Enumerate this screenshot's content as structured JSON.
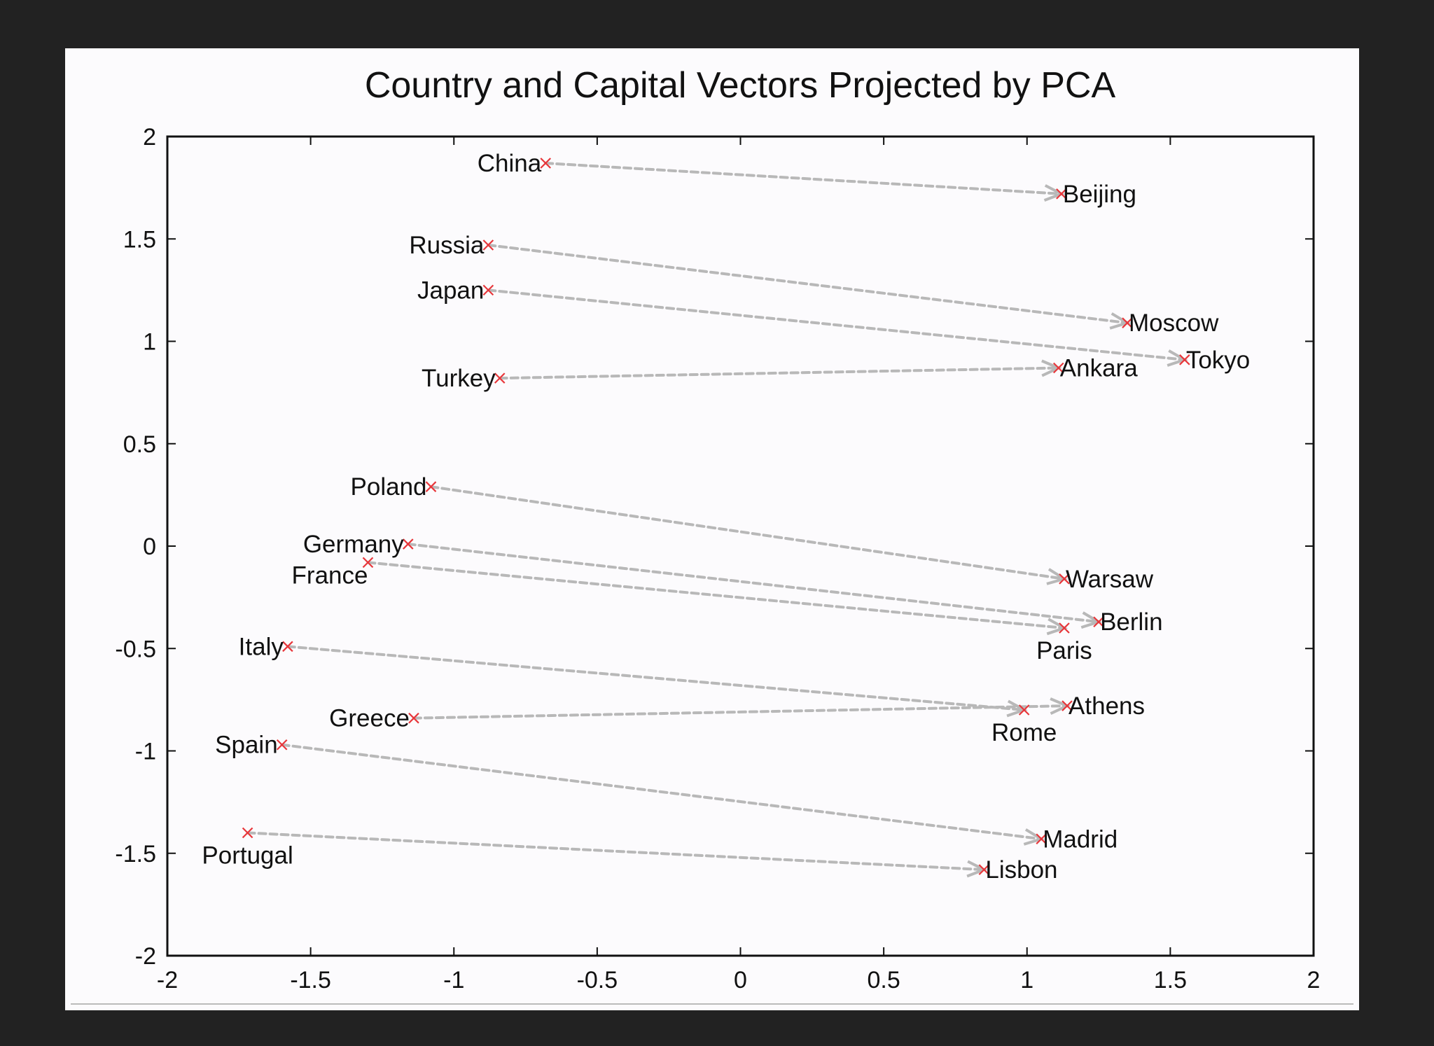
{
  "chart_data": {
    "type": "scatter",
    "title": "Country and Capital Vectors Projected by PCA",
    "xlabel": "",
    "ylabel": "",
    "xlim": [
      -2,
      2
    ],
    "ylim": [
      -2,
      2
    ],
    "xticks": [
      -2,
      -1.5,
      -1,
      -0.5,
      0,
      0.5,
      1,
      1.5,
      2
    ],
    "yticks": [
      -2,
      -1.5,
      -1,
      -0.5,
      0,
      0.5,
      1,
      1.5,
      2
    ],
    "xtick_labels": [
      "-2",
      "-1.5",
      "-1",
      "-0.5",
      "0",
      "0.5",
      "1",
      "1.5",
      "2"
    ],
    "ytick_labels": [
      "-2",
      "-1.5",
      "-1",
      "-0.5",
      "0",
      "0.5",
      "1",
      "1.5",
      "2"
    ],
    "grid": false,
    "marker": "x",
    "marker_color": "#e8363a",
    "arrow_color": "#b8b8b8",
    "points": [
      {
        "label": "China",
        "x": -0.68,
        "y": 1.87,
        "label_pos": "left"
      },
      {
        "label": "Beijing",
        "x": 1.12,
        "y": 1.72,
        "label_pos": "right"
      },
      {
        "label": "Russia",
        "x": -0.88,
        "y": 1.47,
        "label_pos": "left"
      },
      {
        "label": "Moscow",
        "x": 1.35,
        "y": 1.09,
        "label_pos": "right"
      },
      {
        "label": "Japan",
        "x": -0.88,
        "y": 1.25,
        "label_pos": "left"
      },
      {
        "label": "Tokyo",
        "x": 1.55,
        "y": 0.91,
        "label_pos": "right"
      },
      {
        "label": "Turkey",
        "x": -0.84,
        "y": 0.82,
        "label_pos": "left"
      },
      {
        "label": "Ankara",
        "x": 1.11,
        "y": 0.87,
        "label_pos": "right"
      },
      {
        "label": "Poland",
        "x": -1.08,
        "y": 0.29,
        "label_pos": "left"
      },
      {
        "label": "Warsaw",
        "x": 1.13,
        "y": -0.16,
        "label_pos": "right"
      },
      {
        "label": "Germany",
        "x": -1.16,
        "y": 0.01,
        "label_pos": "left"
      },
      {
        "label": "Berlin",
        "x": 1.25,
        "y": -0.37,
        "label_pos": "right"
      },
      {
        "label": "France",
        "x": -1.3,
        "y": -0.08,
        "label_pos": "below-left"
      },
      {
        "label": "Paris",
        "x": 1.13,
        "y": -0.4,
        "label_pos": "below"
      },
      {
        "label": "Italy",
        "x": -1.58,
        "y": -0.49,
        "label_pos": "left"
      },
      {
        "label": "Rome",
        "x": 0.99,
        "y": -0.8,
        "label_pos": "below"
      },
      {
        "label": "Greece",
        "x": -1.14,
        "y": -0.84,
        "label_pos": "left"
      },
      {
        "label": "Athens",
        "x": 1.14,
        "y": -0.78,
        "label_pos": "right"
      },
      {
        "label": "Spain",
        "x": -1.6,
        "y": -0.97,
        "label_pos": "left"
      },
      {
        "label": "Madrid",
        "x": 1.05,
        "y": -1.43,
        "label_pos": "right"
      },
      {
        "label": "Portugal",
        "x": -1.72,
        "y": -1.4,
        "label_pos": "below"
      },
      {
        "label": "Lisbon",
        "x": 0.85,
        "y": -1.58,
        "label_pos": "right"
      }
    ],
    "arrows": [
      {
        "from": "China",
        "to": "Beijing"
      },
      {
        "from": "Russia",
        "to": "Moscow"
      },
      {
        "from": "Japan",
        "to": "Tokyo"
      },
      {
        "from": "Turkey",
        "to": "Ankara"
      },
      {
        "from": "Poland",
        "to": "Warsaw"
      },
      {
        "from": "Germany",
        "to": "Berlin"
      },
      {
        "from": "France",
        "to": "Paris"
      },
      {
        "from": "Italy",
        "to": "Rome"
      },
      {
        "from": "Greece",
        "to": "Athens"
      },
      {
        "from": "Spain",
        "to": "Madrid"
      },
      {
        "from": "Portugal",
        "to": "Lisbon"
      }
    ]
  }
}
